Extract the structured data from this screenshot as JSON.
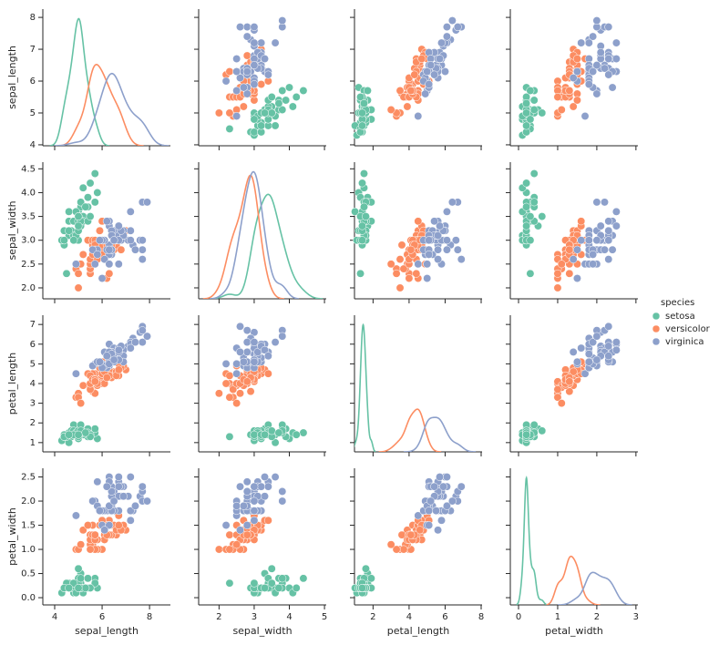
{
  "chart_data": {
    "type": "pairplot",
    "variables": [
      "sepal_length",
      "sepal_width",
      "petal_length",
      "petal_width"
    ],
    "legend_title": "species",
    "legend_position": "right",
    "axes": [
      {
        "xlim": [
          3.5,
          8.88
        ],
        "xticks": [
          4,
          6,
          8
        ],
        "ylim": [
          3.97,
          8.26
        ],
        "yticks": [
          4,
          5,
          6,
          7,
          8
        ]
      },
      {
        "xlim": [
          1.42,
          5.05
        ],
        "xticks": [
          2,
          3,
          4,
          5
        ],
        "ylim": [
          1.77,
          4.64
        ],
        "yticks": [
          {
            "value": 2,
            "label": "2.0"
          },
          2.5,
          {
            "value": 3,
            "label": "3.0"
          },
          3.5,
          {
            "value": 4,
            "label": "4.0"
          },
          4.5
        ]
      },
      {
        "xlim": [
          0.97,
          8.05
        ],
        "xticks": [
          2,
          4,
          6,
          8
        ],
        "ylim": [
          0.53,
          7.47
        ],
        "yticks": [
          1,
          2,
          3,
          4,
          5,
          6,
          7
        ]
      },
      {
        "xlim": [
          -0.21,
          3.05
        ],
        "xticks": [
          0,
          1,
          2,
          3
        ],
        "ylim": [
          -0.15,
          2.68
        ],
        "yticks": [
          {
            "value": 0,
            "label": "0.0"
          },
          0.5,
          {
            "value": 1,
            "label": "1.0"
          },
          1.5,
          {
            "value": 2,
            "label": "2.0"
          },
          2.5
        ]
      }
    ],
    "series": [
      {
        "name": "setosa",
        "color": "#66c2a5",
        "sepal_length": [
          5.1,
          4.9,
          4.7,
          4.6,
          5.0,
          5.4,
          4.6,
          5.0,
          4.4,
          4.9,
          5.4,
          4.8,
          4.8,
          4.3,
          5.8,
          5.7,
          5.4,
          5.1,
          5.7,
          5.1,
          5.4,
          5.1,
          4.6,
          5.1,
          4.8,
          5.0,
          5.0,
          5.2,
          5.2,
          4.7,
          4.8,
          5.4,
          5.2,
          5.5,
          4.9,
          5.0,
          5.5,
          4.9,
          4.4,
          5.1,
          5.0,
          4.5,
          4.4,
          5.0,
          5.1,
          4.8,
          5.1,
          4.6,
          5.3,
          5.0
        ],
        "sepal_width": [
          3.5,
          3.0,
          3.2,
          3.1,
          3.6,
          3.9,
          3.4,
          3.4,
          2.9,
          3.1,
          3.7,
          3.4,
          3.0,
          3.0,
          4.0,
          4.4,
          3.9,
          3.5,
          3.8,
          3.8,
          3.4,
          3.7,
          3.6,
          3.3,
          3.4,
          3.0,
          3.4,
          3.5,
          3.4,
          3.2,
          3.1,
          3.4,
          4.1,
          4.2,
          3.1,
          3.2,
          3.5,
          3.6,
          3.0,
          3.4,
          3.5,
          2.3,
          3.2,
          3.5,
          3.8,
          3.0,
          3.8,
          3.2,
          3.7,
          3.3
        ],
        "petal_length": [
          1.4,
          1.4,
          1.3,
          1.5,
          1.4,
          1.7,
          1.4,
          1.5,
          1.4,
          1.5,
          1.5,
          1.6,
          1.4,
          1.1,
          1.2,
          1.5,
          1.3,
          1.4,
          1.7,
          1.5,
          1.7,
          1.5,
          1.0,
          1.7,
          1.9,
          1.6,
          1.6,
          1.5,
          1.4,
          1.6,
          1.6,
          1.5,
          1.5,
          1.4,
          1.5,
          1.2,
          1.3,
          1.4,
          1.3,
          1.5,
          1.3,
          1.3,
          1.3,
          1.6,
          1.9,
          1.4,
          1.6,
          1.4,
          1.5,
          1.4
        ],
        "petal_width": [
          0.2,
          0.2,
          0.2,
          0.2,
          0.2,
          0.4,
          0.3,
          0.2,
          0.2,
          0.1,
          0.2,
          0.2,
          0.1,
          0.1,
          0.2,
          0.4,
          0.4,
          0.3,
          0.3,
          0.3,
          0.2,
          0.4,
          0.2,
          0.5,
          0.2,
          0.2,
          0.4,
          0.2,
          0.2,
          0.2,
          0.2,
          0.4,
          0.1,
          0.2,
          0.2,
          0.2,
          0.2,
          0.1,
          0.2,
          0.2,
          0.3,
          0.3,
          0.2,
          0.6,
          0.4,
          0.3,
          0.2,
          0.2,
          0.2,
          0.2
        ]
      },
      {
        "name": "versicolor",
        "color": "#fc8d62",
        "sepal_length": [
          7.0,
          6.4,
          6.9,
          5.5,
          6.5,
          5.7,
          6.3,
          4.9,
          6.6,
          5.2,
          5.0,
          5.9,
          6.0,
          6.1,
          5.6,
          6.7,
          5.6,
          5.8,
          6.2,
          5.6,
          5.9,
          6.1,
          6.3,
          6.1,
          6.4,
          6.6,
          6.8,
          6.7,
          6.0,
          5.7,
          5.5,
          5.5,
          5.8,
          6.0,
          5.4,
          6.0,
          6.7,
          6.3,
          5.6,
          5.5,
          5.5,
          6.1,
          5.8,
          5.0,
          5.6,
          5.7,
          5.7,
          6.2,
          5.1,
          5.7
        ],
        "sepal_width": [
          3.2,
          3.2,
          3.1,
          2.3,
          2.8,
          2.8,
          3.3,
          2.4,
          2.9,
          2.7,
          2.0,
          3.0,
          2.2,
          2.9,
          2.9,
          3.1,
          3.0,
          2.7,
          2.2,
          2.5,
          3.2,
          2.8,
          2.5,
          2.8,
          2.9,
          3.0,
          2.8,
          3.0,
          2.9,
          2.6,
          2.4,
          2.4,
          2.7,
          2.7,
          3.0,
          3.4,
          3.1,
          2.3,
          3.0,
          2.5,
          2.6,
          3.0,
          2.6,
          2.3,
          2.7,
          3.0,
          2.9,
          2.9,
          2.5,
          2.8
        ],
        "petal_length": [
          4.7,
          4.5,
          4.9,
          4.0,
          4.6,
          4.5,
          4.7,
          3.3,
          4.6,
          3.9,
          3.5,
          4.2,
          4.0,
          4.7,
          3.6,
          4.4,
          4.5,
          4.1,
          4.5,
          3.9,
          4.8,
          4.0,
          4.9,
          4.7,
          4.3,
          4.4,
          4.8,
          5.0,
          4.5,
          3.5,
          3.8,
          3.7,
          3.9,
          5.1,
          4.5,
          4.5,
          4.7,
          4.4,
          4.1,
          4.0,
          4.4,
          4.6,
          4.0,
          3.3,
          4.2,
          4.2,
          4.2,
          4.3,
          3.0,
          4.1
        ],
        "petal_width": [
          1.4,
          1.5,
          1.5,
          1.3,
          1.5,
          1.3,
          1.6,
          1.0,
          1.3,
          1.4,
          1.0,
          1.5,
          1.0,
          1.4,
          1.3,
          1.4,
          1.5,
          1.0,
          1.5,
          1.1,
          1.8,
          1.3,
          1.5,
          1.2,
          1.3,
          1.4,
          1.4,
          1.7,
          1.5,
          1.0,
          1.1,
          1.0,
          1.2,
          1.6,
          1.5,
          1.6,
          1.5,
          1.3,
          1.3,
          1.3,
          1.2,
          1.4,
          1.2,
          1.0,
          1.3,
          1.2,
          1.3,
          1.3,
          1.1,
          1.3
        ]
      },
      {
        "name": "virginica",
        "color": "#8da0cb",
        "sepal_length": [
          6.3,
          5.8,
          7.1,
          6.3,
          6.5,
          7.6,
          4.9,
          7.3,
          6.7,
          7.2,
          6.5,
          6.4,
          6.8,
          5.7,
          5.8,
          6.4,
          6.5,
          7.7,
          7.7,
          6.0,
          6.9,
          5.6,
          7.7,
          6.3,
          6.7,
          7.2,
          6.2,
          6.1,
          6.4,
          7.2,
          7.4,
          7.9,
          6.4,
          6.3,
          6.1,
          7.7,
          6.3,
          6.4,
          6.0,
          6.9,
          6.7,
          6.9,
          5.8,
          6.8,
          6.7,
          6.7,
          6.3,
          6.5,
          6.2,
          5.9
        ],
        "sepal_width": [
          3.3,
          2.7,
          3.0,
          2.9,
          3.0,
          3.0,
          2.5,
          2.9,
          2.5,
          3.6,
          3.2,
          2.7,
          3.0,
          2.5,
          2.8,
          3.2,
          3.0,
          3.8,
          2.6,
          2.2,
          3.2,
          2.8,
          2.8,
          2.7,
          3.3,
          3.2,
          2.8,
          3.0,
          2.8,
          3.0,
          2.8,
          3.8,
          2.8,
          2.8,
          2.6,
          3.0,
          3.4,
          3.1,
          3.0,
          3.1,
          3.1,
          3.1,
          2.7,
          3.2,
          3.3,
          3.0,
          2.5,
          3.0,
          3.4,
          3.0
        ],
        "petal_length": [
          6.0,
          5.1,
          5.9,
          5.6,
          5.8,
          6.6,
          4.5,
          6.3,
          5.8,
          6.1,
          5.1,
          5.3,
          5.5,
          5.0,
          5.1,
          5.3,
          5.5,
          6.7,
          6.9,
          5.0,
          5.7,
          4.9,
          6.7,
          4.9,
          5.7,
          6.0,
          4.8,
          4.9,
          5.6,
          5.8,
          6.1,
          6.4,
          5.6,
          5.1,
          5.6,
          6.1,
          5.6,
          5.5,
          4.8,
          5.4,
          5.6,
          5.1,
          5.1,
          5.9,
          5.7,
          5.2,
          5.0,
          5.2,
          5.4,
          5.1
        ],
        "petal_width": [
          2.5,
          1.9,
          2.1,
          1.8,
          2.2,
          2.1,
          1.7,
          1.8,
          1.8,
          2.5,
          2.0,
          1.9,
          2.1,
          2.0,
          2.4,
          2.3,
          1.8,
          2.2,
          2.3,
          1.5,
          2.3,
          2.0,
          2.0,
          1.8,
          2.1,
          1.8,
          1.8,
          1.8,
          2.1,
          1.6,
          1.9,
          2.0,
          2.2,
          1.5,
          1.4,
          2.3,
          2.4,
          1.8,
          1.8,
          2.1,
          2.4,
          2.3,
          1.9,
          2.3,
          2.5,
          2.3,
          1.9,
          2.0,
          2.3,
          1.8
        ]
      }
    ]
  }
}
